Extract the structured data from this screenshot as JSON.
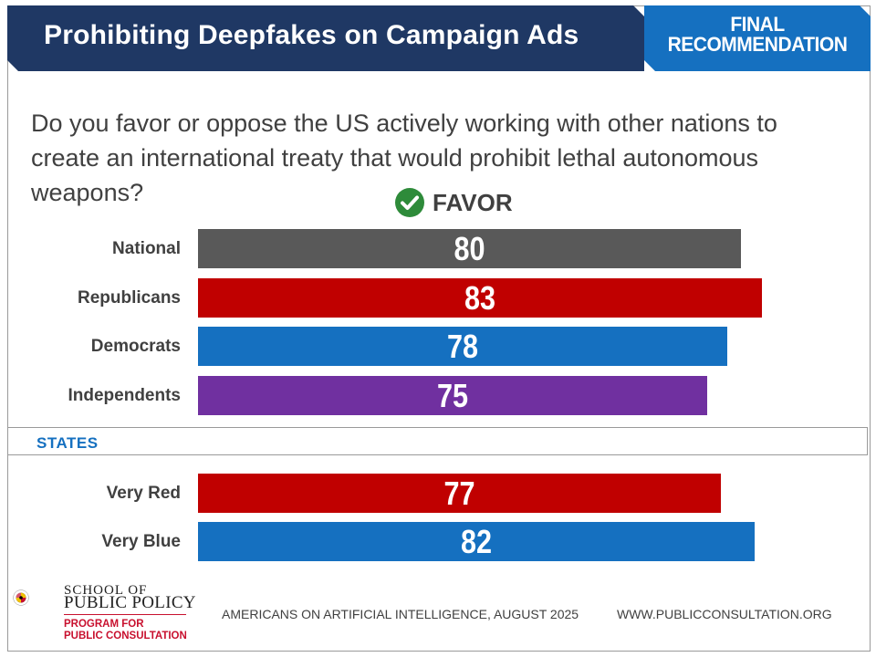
{
  "header": {
    "title": "Prohibiting Deepfakes on Campaign Ads",
    "badge_line1": "FINAL",
    "badge_line2": "RECOMMENDATION"
  },
  "question": "Do you favor or oppose the US actively working with other nations to create an international treaty that would prohibit lethal autonomous weapons?",
  "favor_label": "FAVOR",
  "states_label": "STATES",
  "chart_data": {
    "type": "bar",
    "orientation": "horizontal",
    "title": "Prohibiting Deepfakes on Campaign Ads",
    "subtitle": "FAVOR",
    "categories": [
      "National",
      "Republicans",
      "Democrats",
      "Independents",
      "Very Red",
      "Very Blue"
    ],
    "values": [
      80,
      83,
      78,
      75,
      77,
      82
    ],
    "colors": [
      "#595959",
      "#c00000",
      "#1570c0",
      "#7030a0",
      "#c00000",
      "#1570c0"
    ],
    "groups": [
      {
        "name": "",
        "categories": [
          "National",
          "Republicans",
          "Democrats",
          "Independents"
        ]
      },
      {
        "name": "STATES",
        "categories": [
          "Very Red",
          "Very Blue"
        ]
      }
    ],
    "xlim": [
      0,
      100
    ],
    "grid": false,
    "data_labels": true
  },
  "logo": {
    "seal_text": "UNIVERSITY OF MARYLAND",
    "school_line1": "SCHOOL OF",
    "school_line2": "PUBLIC POLICY",
    "program_line1": "PROGRAM FOR",
    "program_line2": "PUBLIC CONSULTATION"
  },
  "footer": {
    "left": "AMERICANS ON ARTIFICIAL INTELLIGENCE, AUGUST 2025",
    "right": "WWW.PUBLICCONSULTATION.ORG"
  }
}
